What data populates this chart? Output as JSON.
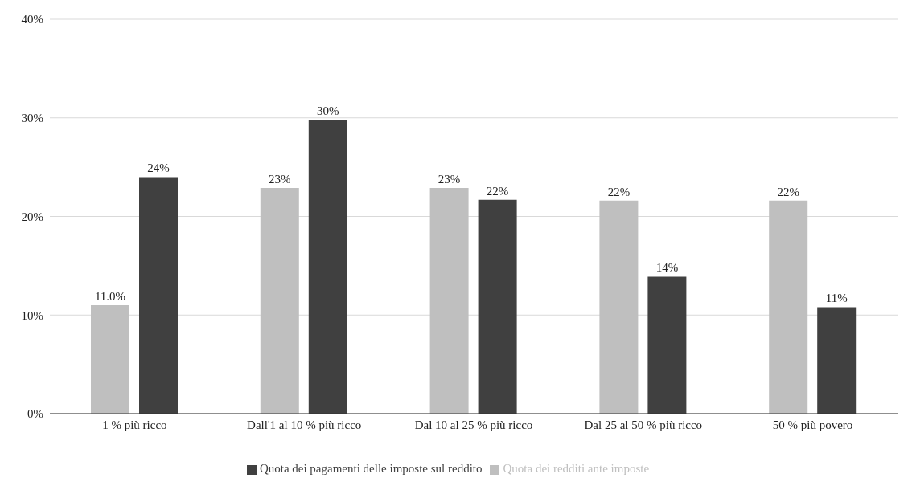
{
  "chart_data": {
    "type": "bar",
    "categories": [
      "1 % più ricco",
      "Dall'1 al 10 % più ricco",
      "Dal 10 al 25 % più ricco",
      "Dal 25 al 50 % più ricco",
      "50 % più povero"
    ],
    "series": [
      {
        "name": "Quota dei redditi ante imposte",
        "color": "#bfbfbf",
        "values": [
          11.0,
          22.9,
          22.9,
          21.6,
          21.6
        ],
        "value_labels": [
          "11.0%",
          "23%",
          "23%",
          "22%",
          "22%"
        ]
      },
      {
        "name": "Quota dei pagamenti delle imposte sul reddito",
        "color": "#404040",
        "values": [
          24.0,
          29.8,
          21.7,
          13.9,
          10.8
        ],
        "value_labels": [
          "24%",
          "30%",
          "22%",
          "14%",
          "11%"
        ]
      }
    ],
    "ylim": [
      0,
      40
    ],
    "yticks": [
      {
        "value": 0,
        "label": "0%"
      },
      {
        "value": 10,
        "label": "10%"
      },
      {
        "value": 20,
        "label": "20%"
      },
      {
        "value": 30,
        "label": "30%"
      },
      {
        "value": 40,
        "label": "40%"
      }
    ],
    "grid": "y",
    "legend": "bottom"
  }
}
